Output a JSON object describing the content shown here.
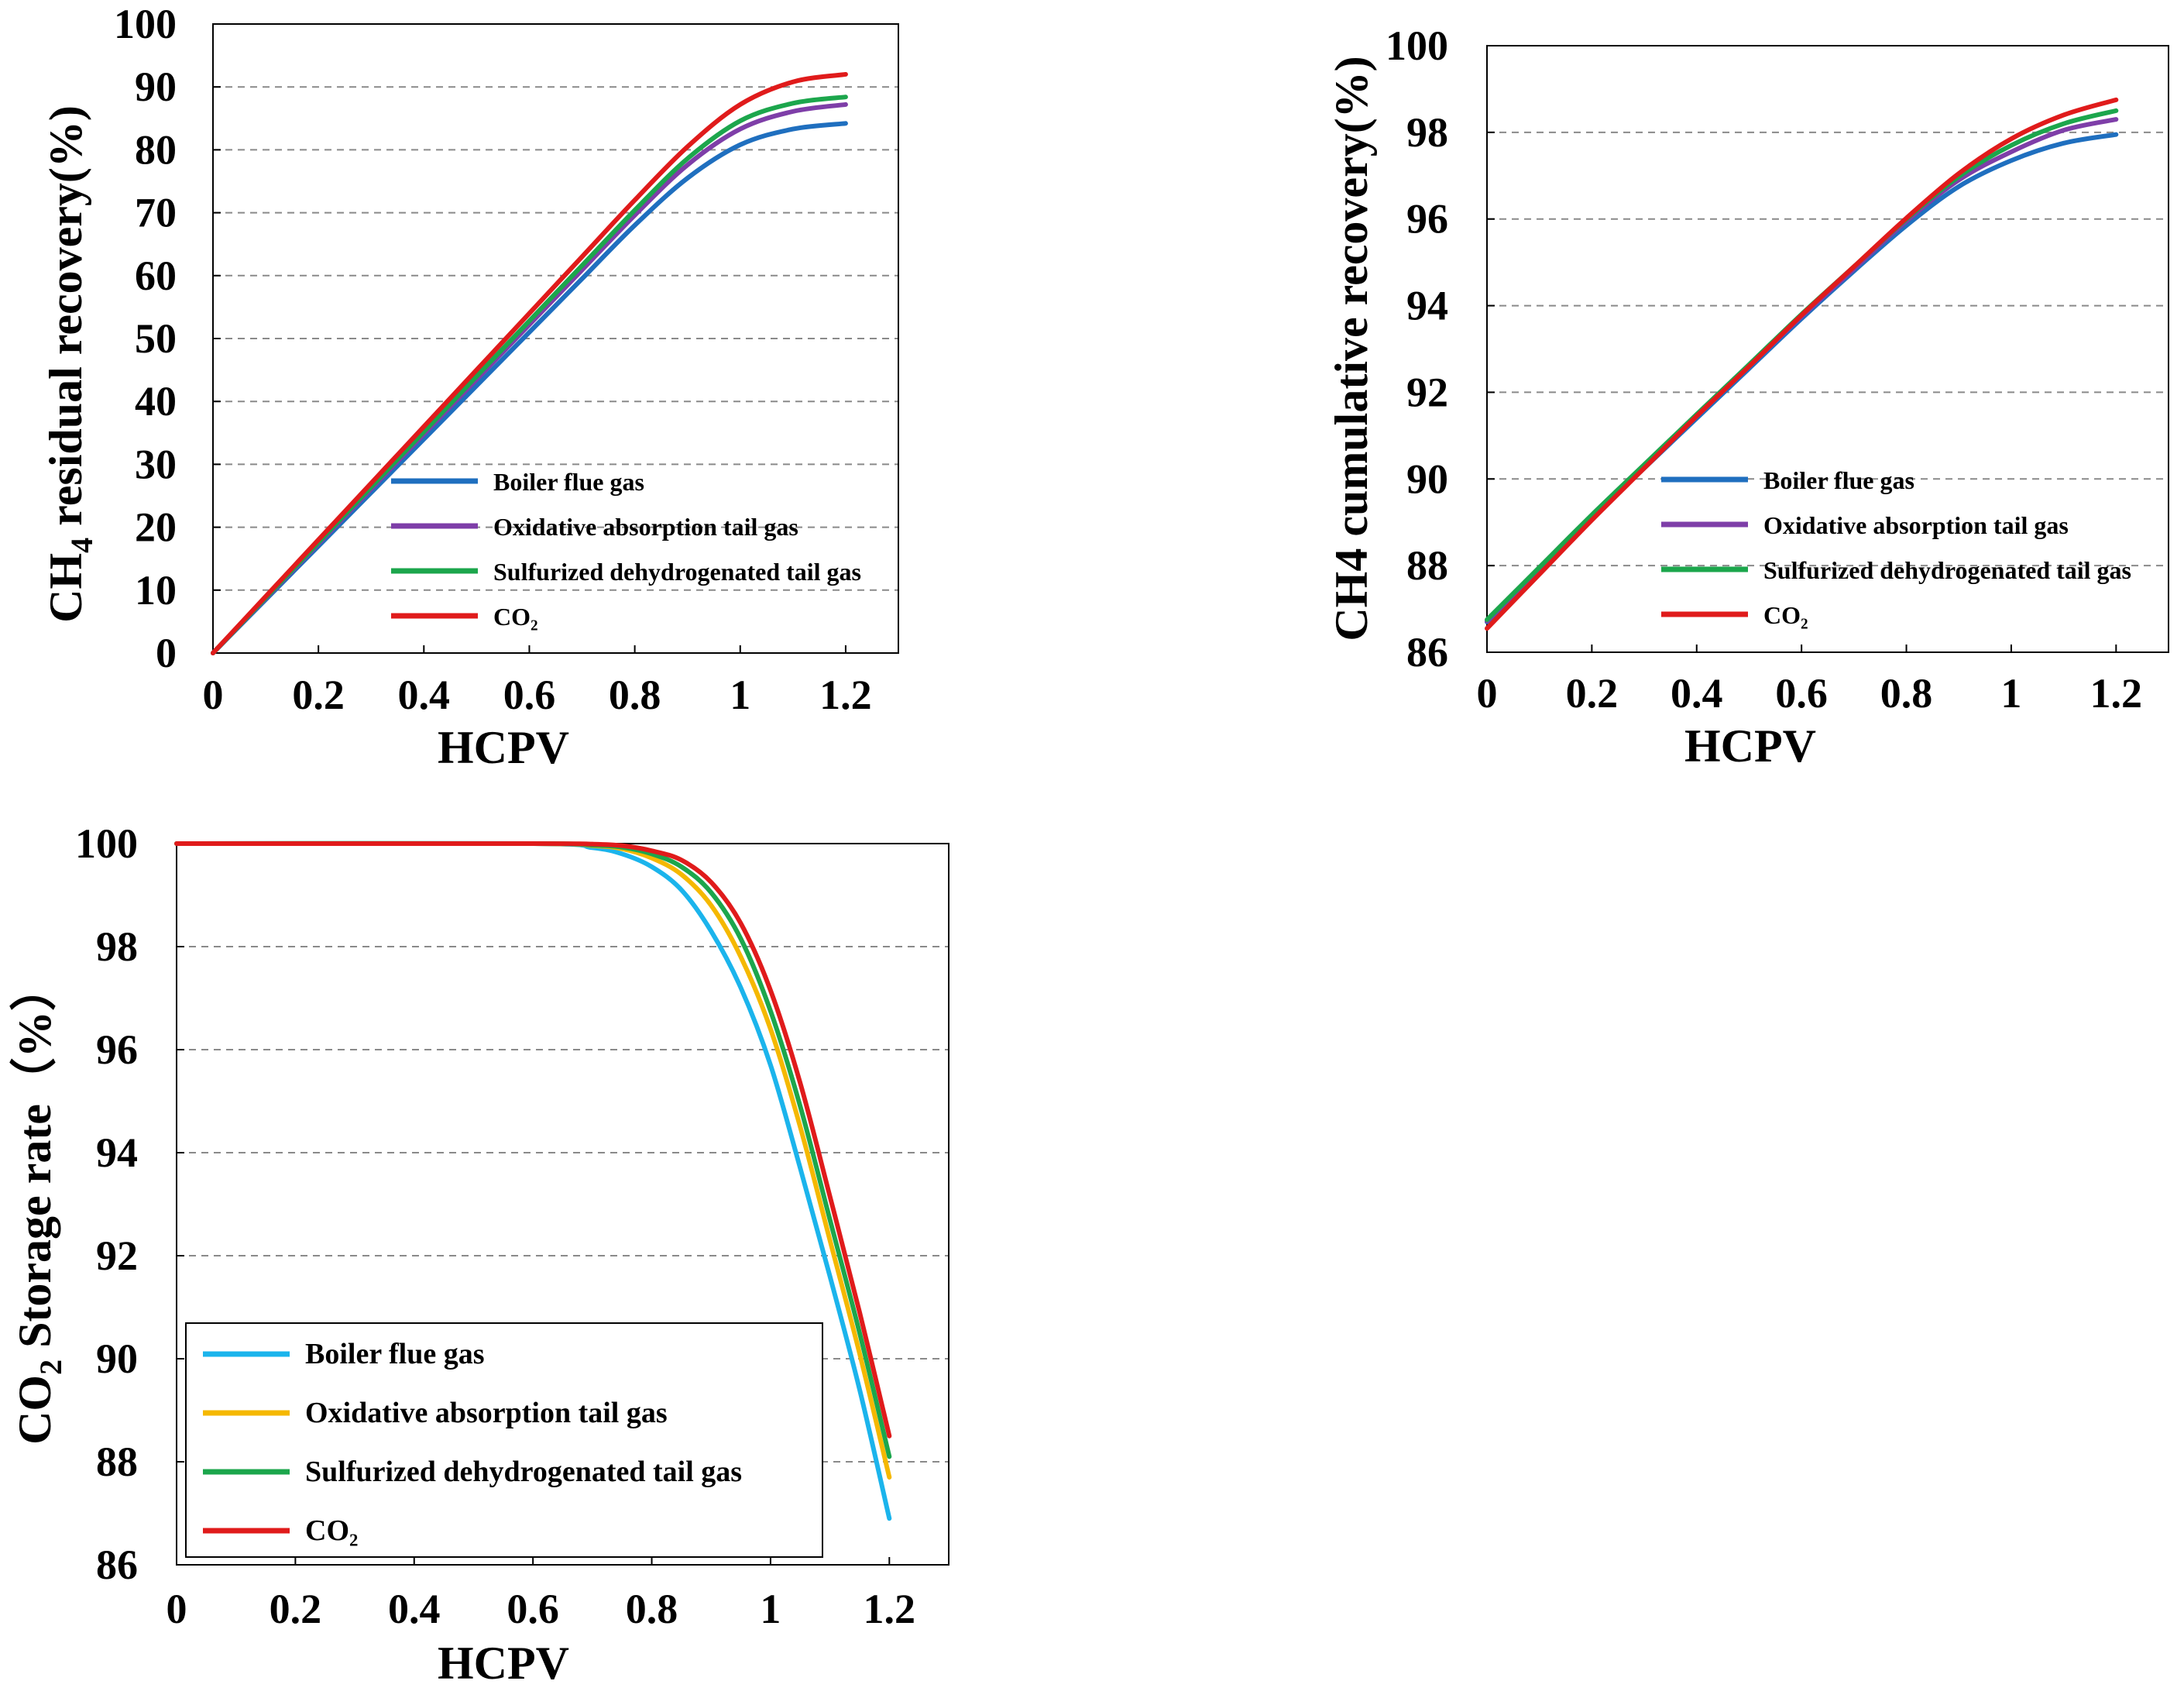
{
  "chart_data": [
    {
      "id": "chart1",
      "type": "line",
      "title": "",
      "xlabel": "HCPV",
      "ylabel_main": "CH",
      "ylabel_sub": "4",
      "ylabel_rest": " residual recovery(%)",
      "xlim": [
        0,
        1.3
      ],
      "ylim": [
        0,
        100
      ],
      "xticks": [
        "0",
        "0.2",
        "0.4",
        "0.6",
        "0.8",
        "1",
        "1.2"
      ],
      "yticks": [
        "0",
        "10",
        "20",
        "30",
        "40",
        "50",
        "60",
        "70",
        "80",
        "90",
        "100"
      ],
      "x": [
        0,
        0.1,
        0.2,
        0.3,
        0.4,
        0.5,
        0.6,
        0.7,
        0.8,
        0.9,
        1.0,
        1.1,
        1.2
      ],
      "legend_position": "bottom-right",
      "series": [
        {
          "name": "Boiler flue gas",
          "color": "#1f6fbf",
          "values": [
            0,
            8.5,
            17,
            25.5,
            34,
            42.5,
            51,
            59.5,
            68,
            75.5,
            80.8,
            83.3,
            84.2
          ]
        },
        {
          "name": "Oxidative absorption tail gas",
          "color": "#7e3ea8",
          "values": [
            0,
            8.7,
            17.4,
            26.1,
            34.8,
            43.5,
            52.2,
            60.9,
            69.6,
            77.6,
            83.3,
            86.1,
            87.2
          ]
        },
        {
          "name": "Sulfurized dehydrogenated tail gas",
          "color": "#1ca64c",
          "values": [
            0,
            8.8,
            17.6,
            26.4,
            35.2,
            44,
            52.8,
            61.6,
            70.4,
            78.6,
            84.6,
            87.4,
            88.4
          ]
        },
        {
          "name": "CO₂",
          "color": "#e01b1b",
          "values": [
            0,
            9,
            18,
            27,
            36,
            45,
            54,
            63,
            72,
            80.5,
            87.2,
            90.8,
            92
          ]
        }
      ]
    },
    {
      "id": "chart2",
      "type": "line",
      "title": "",
      "xlabel": "HCPV",
      "ylabel": "CH4 cumulative recovery(%)",
      "xlim": [
        0,
        1.3
      ],
      "ylim": [
        86,
        100
      ],
      "xticks": [
        "0",
        "0.2",
        "0.4",
        "0.6",
        "0.8",
        "1",
        "1.2"
      ],
      "yticks": [
        "86",
        "88",
        "90",
        "92",
        "94",
        "96",
        "98",
        "100"
      ],
      "x": [
        0,
        0.1,
        0.2,
        0.3,
        0.4,
        0.5,
        0.6,
        0.7,
        0.8,
        0.9,
        1.0,
        1.1,
        1.2
      ],
      "legend_position": "bottom-right",
      "series": [
        {
          "name": "Boiler flue gas",
          "color": "#1f6fbf",
          "values": [
            86.7,
            87.9,
            89.1,
            90.25,
            91.4,
            92.55,
            93.7,
            94.8,
            95.85,
            96.75,
            97.35,
            97.75,
            97.95
          ]
        },
        {
          "name": "Oxidative absorption tail gas",
          "color": "#7e3ea8",
          "values": [
            86.72,
            87.93,
            89.14,
            90.3,
            91.45,
            92.6,
            93.75,
            94.85,
            95.95,
            96.9,
            97.55,
            98.05,
            98.3
          ]
        },
        {
          "name": "Sulfurized dehydrogenated tail gas",
          "color": "#1ca64c",
          "values": [
            86.75,
            87.96,
            89.17,
            90.33,
            91.49,
            92.64,
            93.8,
            94.9,
            96.0,
            96.98,
            97.7,
            98.2,
            98.5
          ]
        },
        {
          "name": "CO₂",
          "color": "#e01b1b",
          "values": [
            86.55,
            87.8,
            89.05,
            90.25,
            91.45,
            92.6,
            93.78,
            94.9,
            96.02,
            97.05,
            97.85,
            98.4,
            98.75
          ]
        }
      ]
    },
    {
      "id": "chart3",
      "type": "line",
      "title": "",
      "xlabel": "HCPV",
      "ylabel_main": "CO",
      "ylabel_sub": "2",
      "ylabel_rest": " Storage rate（%）",
      "xlim": [
        0,
        1.3
      ],
      "ylim": [
        86,
        100
      ],
      "xticks": [
        "0",
        "0.2",
        "0.4",
        "0.6",
        "0.8",
        "1",
        "1.2"
      ],
      "yticks": [
        "86",
        "88",
        "90",
        "92",
        "94",
        "96",
        "98",
        "100"
      ],
      "x": [
        0,
        0.6,
        0.7,
        0.75,
        0.8,
        0.85,
        0.9,
        0.95,
        1.0,
        1.05,
        1.1,
        1.15,
        1.2
      ],
      "legend_position": "bottom-left",
      "series": [
        {
          "name": "Boiler flue gas",
          "color": "#1bb4ec",
          "values": [
            100,
            100,
            99.92,
            99.8,
            99.55,
            99.1,
            98.3,
            97.2,
            95.7,
            93.7,
            91.6,
            89.4,
            86.9
          ]
        },
        {
          "name": "Oxidative absorption tail gas",
          "color": "#f5b800",
          "values": [
            100,
            100,
            99.96,
            99.9,
            99.72,
            99.4,
            98.8,
            97.8,
            96.4,
            94.5,
            92.3,
            90.1,
            87.7
          ]
        },
        {
          "name": "Sulfurized dehydrogenated tail gas",
          "color": "#1ca64c",
          "values": [
            100,
            100,
            99.97,
            99.93,
            99.8,
            99.55,
            99.05,
            98.15,
            96.75,
            94.9,
            92.7,
            90.5,
            88.1
          ]
        },
        {
          "name": "CO₂",
          "color": "#e01b1b",
          "values": [
            100,
            100,
            99.99,
            99.96,
            99.86,
            99.68,
            99.25,
            98.45,
            97.15,
            95.35,
            93.15,
            90.9,
            88.5
          ]
        }
      ]
    }
  ]
}
